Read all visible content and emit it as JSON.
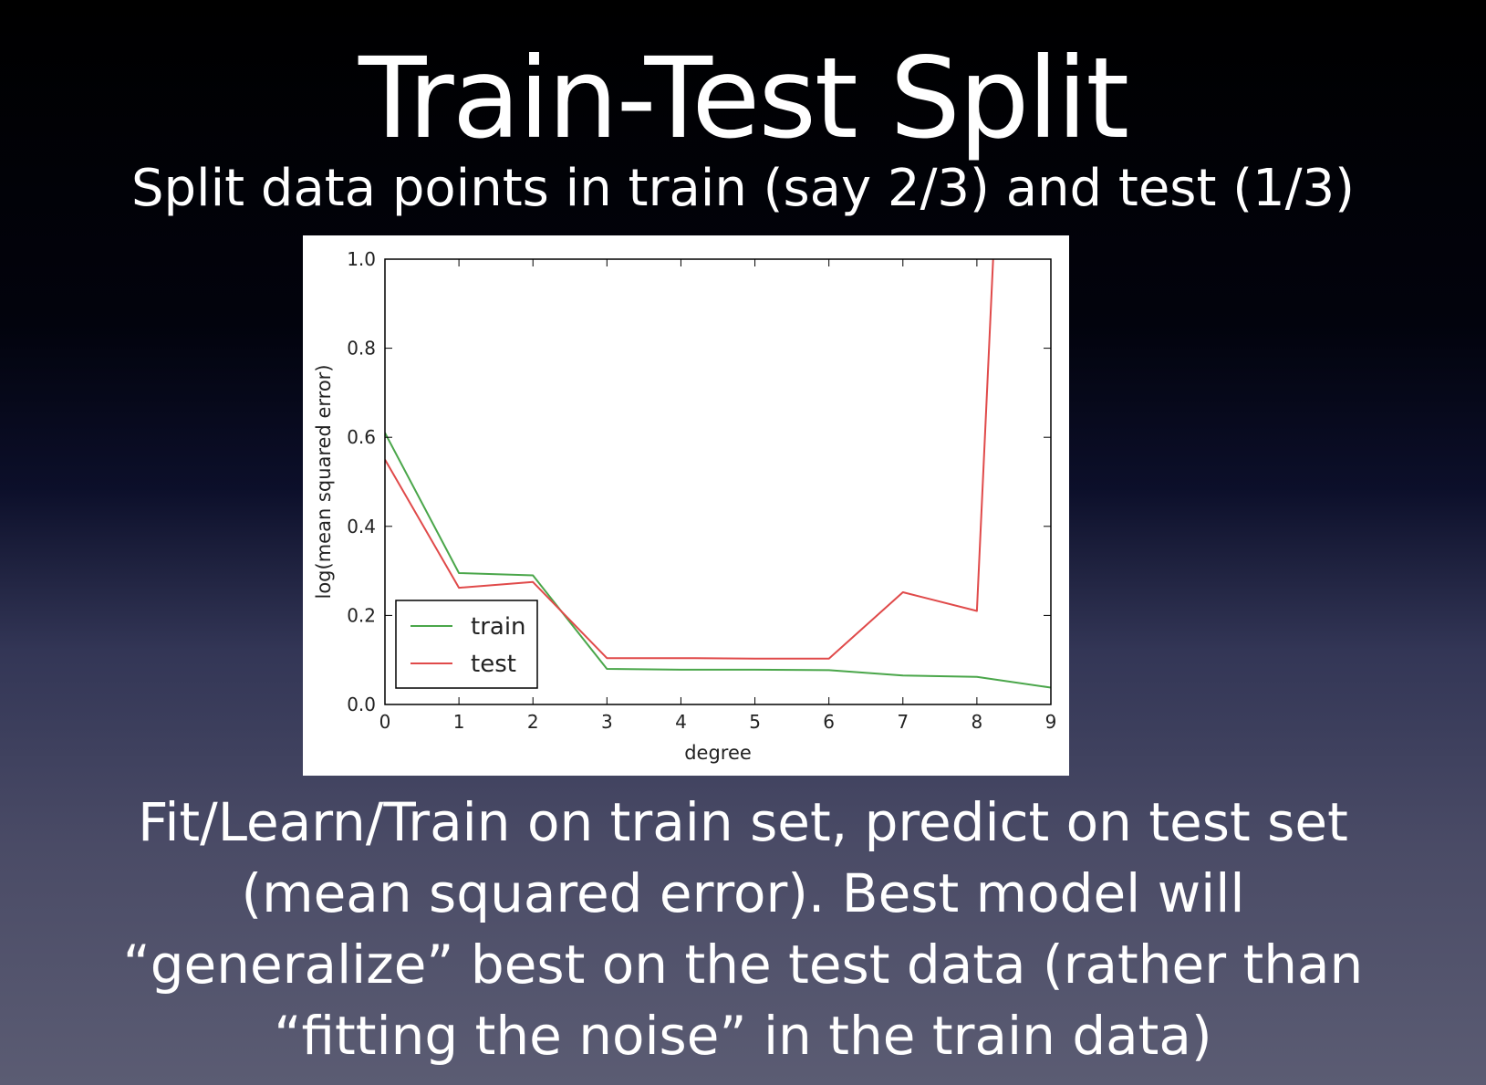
{
  "slide": {
    "title": "Train-Test Split",
    "subtitle": "Split data points in train (say 2/3) and test (1/3)",
    "body_lines": [
      "Fit/Learn/Train on train set, predict on test set",
      "(mean squared error). Best model will",
      "“generalize” best on the test data (rather than",
      "“fitting the noise” in the train data)"
    ]
  },
  "chart_data": {
    "type": "line",
    "title": "",
    "xlabel": "degree",
    "ylabel": "log(mean squared error)",
    "xlim": [
      0,
      9
    ],
    "ylim": [
      0.0,
      1.0
    ],
    "x": [
      0,
      1,
      2,
      3,
      4,
      5,
      6,
      7,
      8,
      9
    ],
    "x_ticks": [
      "0",
      "1",
      "2",
      "3",
      "4",
      "5",
      "6",
      "7",
      "8",
      "9"
    ],
    "y_ticks": [
      "0.0",
      "0.2",
      "0.4",
      "0.6",
      "0.8",
      "1.0"
    ],
    "y_tick_values": [
      0.0,
      0.2,
      0.4,
      0.6,
      0.8,
      1.0
    ],
    "grid": false,
    "legend_position": "lower-left",
    "series": [
      {
        "name": "train",
        "color": "#4aa64a",
        "x": [
          0,
          1,
          2,
          3,
          4,
          5,
          6,
          7,
          8,
          9
        ],
        "values": [
          0.61,
          0.295,
          0.29,
          0.08,
          0.078,
          0.078,
          0.077,
          0.065,
          0.062,
          0.038
        ]
      },
      {
        "name": "test",
        "color": "#e04a4a",
        "x": [
          0,
          1,
          2,
          3,
          4,
          5,
          6,
          7,
          8,
          8.22
        ],
        "values": [
          0.55,
          0.262,
          0.275,
          0.104,
          0.104,
          0.103,
          0.103,
          0.252,
          0.21,
          1.0
        ]
      }
    ]
  }
}
